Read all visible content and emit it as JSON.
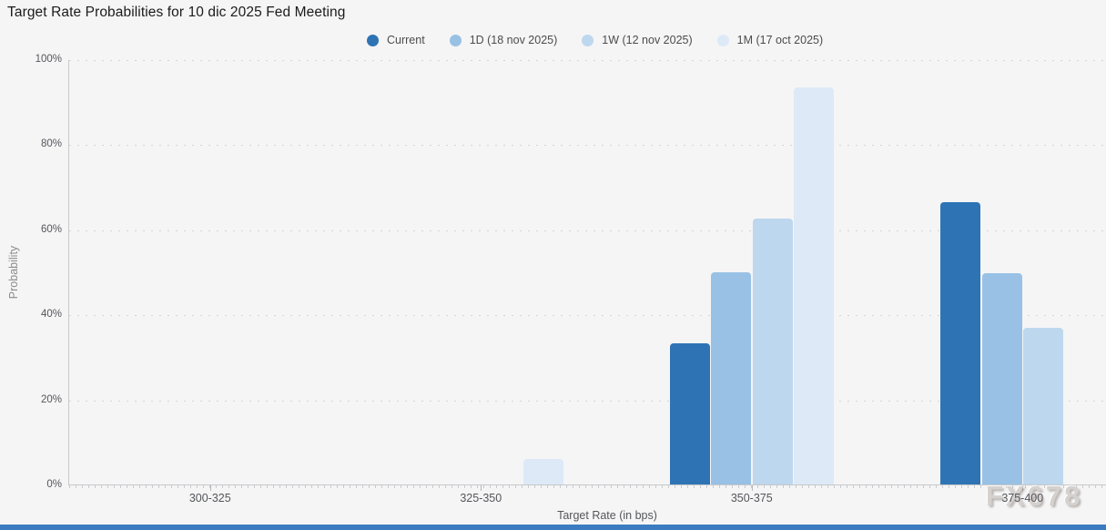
{
  "colors": {
    "background": "#f5f5f6",
    "scrollbar": "#3b7cc0",
    "current": "#2e74b5",
    "one_day": "#99c1e5",
    "one_week": "#bdd7ee",
    "one_month": "#dde9f6"
  },
  "watermark": "FX678",
  "chart_data": {
    "type": "bar",
    "title": "Target Rate Probabilities for 10 dic 2025 Fed Meeting",
    "xlabel": "Target Rate (in bps)",
    "ylabel": "Probability",
    "ylim": [
      0,
      100
    ],
    "yticks": [
      "0%",
      "20%",
      "40%",
      "60%",
      "80%",
      "100%"
    ],
    "grid": "horizontal dotted",
    "legend_position": "top",
    "categories": [
      "300-325",
      "325-350",
      "350-375",
      "375-400"
    ],
    "series": [
      {
        "name": "Current",
        "color": "#2e74b5",
        "values": [
          0,
          0,
          33.4,
          66.6
        ]
      },
      {
        "name": "1D (18 nov 2025)",
        "color": "#99c1e5",
        "values": [
          0,
          0,
          50.2,
          49.8
        ]
      },
      {
        "name": "1W (12 nov 2025)",
        "color": "#bdd7ee",
        "values": [
          0,
          0,
          62.8,
          37.1
        ]
      },
      {
        "name": "1M (17 oct 2025)",
        "color": "#dde9f6",
        "values": [
          0,
          6.3,
          93.6,
          0
        ]
      }
    ]
  }
}
